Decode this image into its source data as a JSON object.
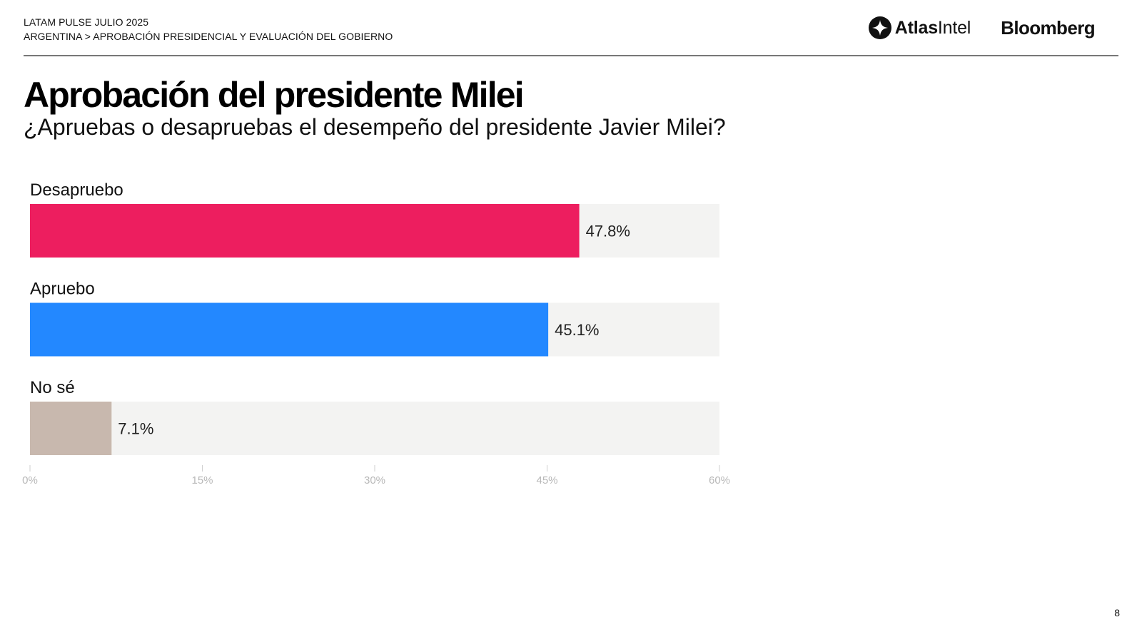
{
  "header": {
    "line1": "LATAM PULSE JULIO 2025",
    "line2": "ARGENTINA > APROBACIÓN PRESIDENCIAL Y EVALUACIÓN DEL GOBIERNO"
  },
  "logos": {
    "atlas_bold": "Atlas",
    "atlas_rest": "Intel",
    "bloomberg": "Bloomberg"
  },
  "title": "Aprobación del presidente Milei",
  "subtitle": "¿Apruebas o desapruebas el desempeño del presidente Javier Milei?",
  "page_number": "8",
  "chart_data": {
    "type": "bar",
    "orientation": "horizontal",
    "categories": [
      "Desapruebo",
      "Apruebo",
      "No sé"
    ],
    "values": [
      47.8,
      45.1,
      7.1
    ],
    "value_labels": [
      "47.8%",
      "45.1%",
      "7.1%"
    ],
    "colors": [
      "#ED1E5F",
      "#2388FF",
      "#C8B8AE"
    ],
    "track_color": "#F3F3F2",
    "xlim": [
      0,
      60
    ],
    "ticks": [
      0,
      15,
      30,
      45,
      60
    ],
    "tick_labels": [
      "0%",
      "15%",
      "30%",
      "45%",
      "60%"
    ],
    "title": "",
    "xlabel": "",
    "ylabel": ""
  }
}
